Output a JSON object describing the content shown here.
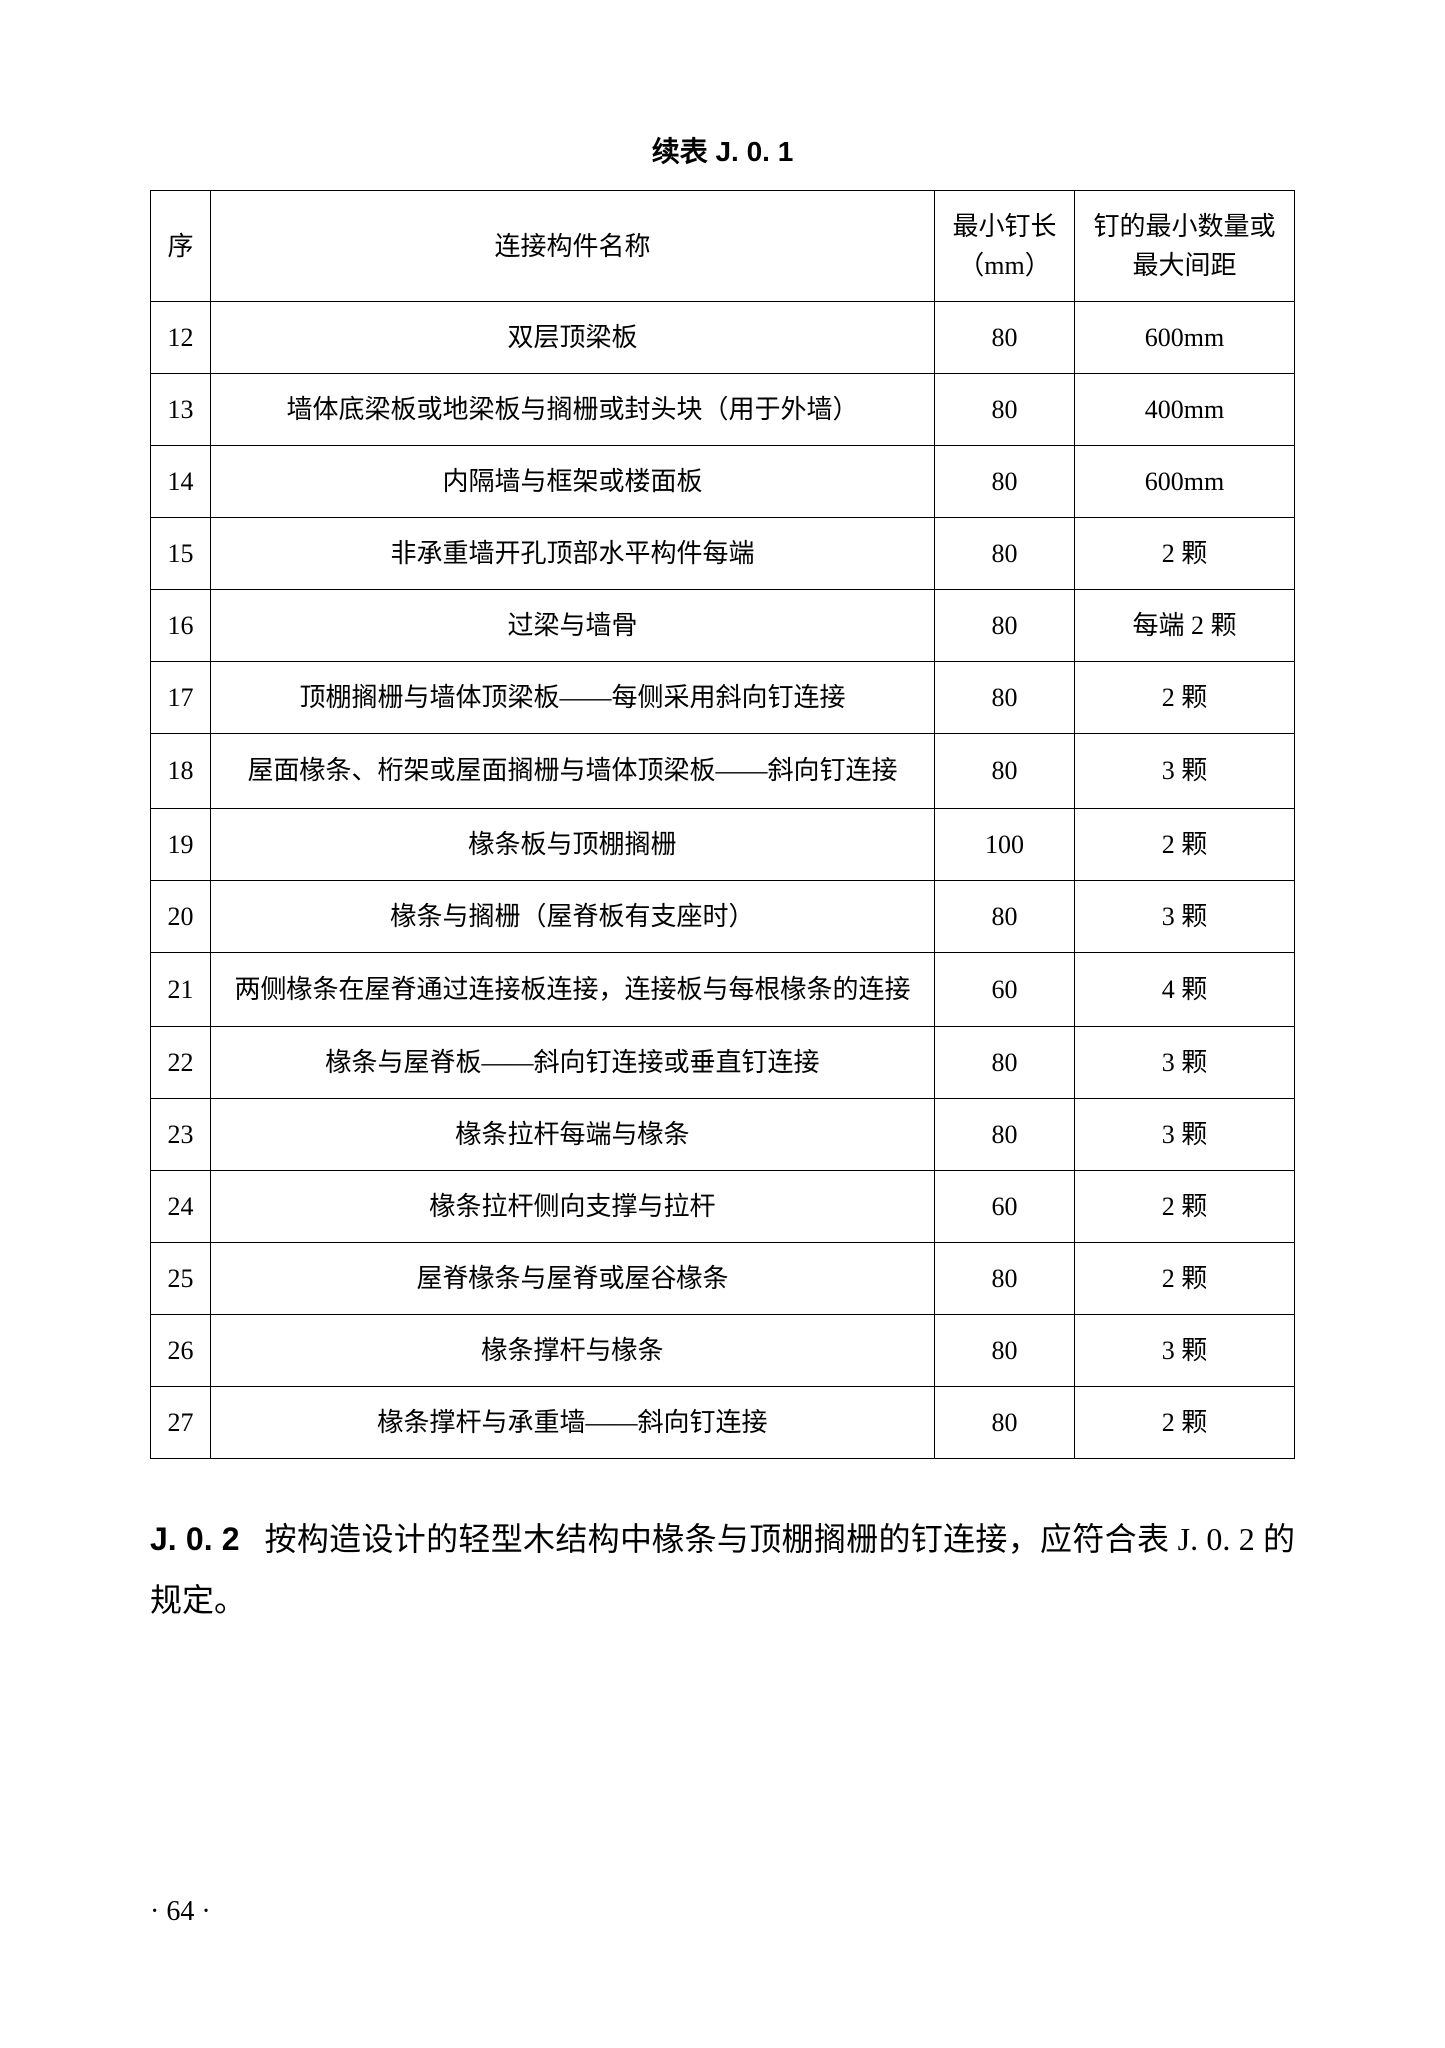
{
  "table": {
    "title": "续表 J. 0. 1",
    "headers": {
      "seq": "序",
      "name": "连接构件名称",
      "minLen": "最小钉长（mm）",
      "minQty": "钉的最小数量或最大间距"
    },
    "rows": [
      {
        "seq": "12",
        "name": "双层顶梁板",
        "len": "80",
        "qty": "600mm"
      },
      {
        "seq": "13",
        "name": "墙体底梁板或地梁板与搁栅或封头块（用于外墙）",
        "len": "80",
        "qty": "400mm"
      },
      {
        "seq": "14",
        "name": "内隔墙与框架或楼面板",
        "len": "80",
        "qty": "600mm"
      },
      {
        "seq": "15",
        "name": "非承重墙开孔顶部水平构件每端",
        "len": "80",
        "qty": "2 颗"
      },
      {
        "seq": "16",
        "name": "过梁与墙骨",
        "len": "80",
        "qty": "每端 2 颗"
      },
      {
        "seq": "17",
        "name": "顶棚搁栅与墙体顶梁板——每侧采用斜向钉连接",
        "len": "80",
        "qty": "2 颗"
      },
      {
        "seq": "18",
        "name": "屋面椽条、桁架或屋面搁栅与墙体顶梁板——斜向钉连接",
        "len": "80",
        "qty": "3 颗"
      },
      {
        "seq": "19",
        "name": "椽条板与顶棚搁栅",
        "len": "100",
        "qty": "2 颗"
      },
      {
        "seq": "20",
        "name": "椽条与搁栅（屋脊板有支座时）",
        "len": "80",
        "qty": "3 颗"
      },
      {
        "seq": "21",
        "name": "两侧椽条在屋脊通过连接板连接，连接板与每根椽条的连接",
        "len": "60",
        "qty": "4 颗"
      },
      {
        "seq": "22",
        "name": "椽条与屋脊板——斜向钉连接或垂直钉连接",
        "len": "80",
        "qty": "3 颗"
      },
      {
        "seq": "23",
        "name": "椽条拉杆每端与椽条",
        "len": "80",
        "qty": "3 颗"
      },
      {
        "seq": "24",
        "name": "椽条拉杆侧向支撑与拉杆",
        "len": "60",
        "qty": "2 颗"
      },
      {
        "seq": "25",
        "name": "屋脊椽条与屋脊或屋谷椽条",
        "len": "80",
        "qty": "2 颗"
      },
      {
        "seq": "26",
        "name": "椽条撑杆与椽条",
        "len": "80",
        "qty": "3 颗"
      },
      {
        "seq": "27",
        "name": "椽条撑杆与承重墙——斜向钉连接",
        "len": "80",
        "qty": "2 颗"
      }
    ]
  },
  "section": {
    "label": "J. 0. 2",
    "text": "按构造设计的轻型木结构中椽条与顶棚搁栅的钉连接，应符合表 J. 0. 2 的规定。"
  },
  "pageNumber": "· 64 ·"
}
